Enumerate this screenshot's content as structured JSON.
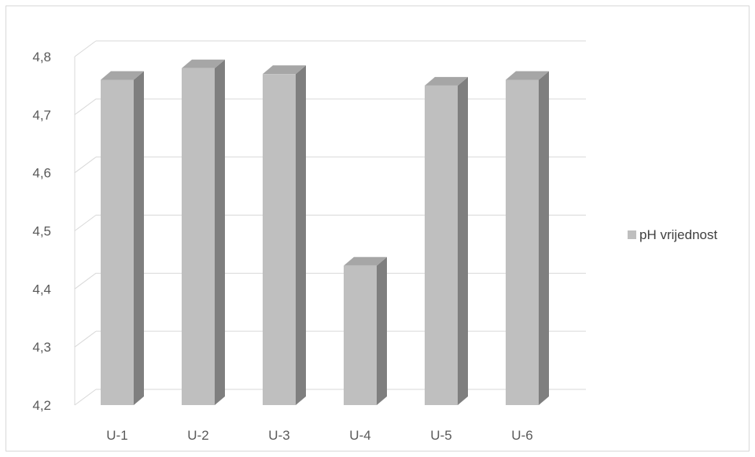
{
  "chart_data": {
    "type": "bar",
    "style": "3d-column",
    "categories": [
      "U-1",
      "U-2",
      "U-3",
      "U-4",
      "U-5",
      "U-6"
    ],
    "series": [
      {
        "name": "pH vrijednost",
        "values": [
          4.76,
          4.78,
          4.77,
          4.44,
          4.75,
          4.76
        ]
      }
    ],
    "ylim": [
      4.2,
      4.8
    ],
    "yticks": [
      "4,2",
      "4,3",
      "4,4",
      "4,5",
      "4,6",
      "4,7",
      "4,8"
    ],
    "grid": true,
    "legend_position": "right",
    "colors": {
      "bar_front": "#bfbfbf",
      "bar_side": "#7f7f7f",
      "bar_top": "#a6a6a6",
      "grid": "#d9d9d9"
    }
  }
}
